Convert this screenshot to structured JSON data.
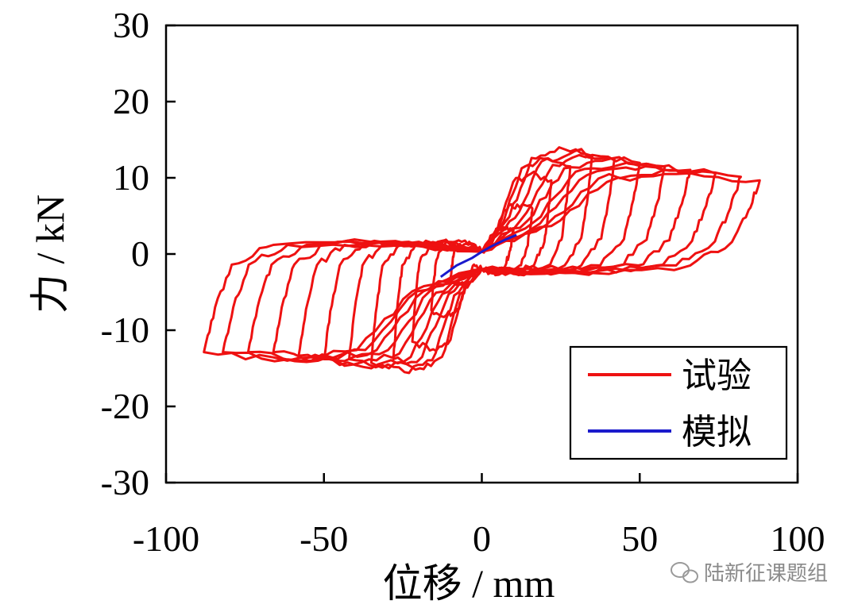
{
  "chart_data": {
    "type": "line",
    "xlabel": "位移 / mm",
    "ylabel": "力 / kN",
    "xlim": [
      -100,
      100
    ],
    "ylim": [
      -30,
      30
    ],
    "xticks": [
      -100,
      -50,
      0,
      50,
      100
    ],
    "yticks": [
      30,
      20,
      10,
      0,
      -10,
      -20,
      -30
    ],
    "xtick_labels": [
      "-100",
      "-50",
      "0",
      "50",
      "100"
    ],
    "ytick_labels": [
      "30",
      "20",
      "10",
      "0",
      "-10",
      "-20",
      "-30"
    ],
    "grid": false,
    "legend_position": "bottom-right",
    "series": [
      {
        "name": "试验",
        "color": "#ee1111",
        "style": "hysteresis",
        "amplitudes": [
          10,
          16,
          22,
          28,
          35,
          42,
          50,
          58,
          66,
          74,
          82,
          88
        ],
        "peak_forces_pos": [
          3.5,
          6.5,
          10.5,
          12.5,
          14.0,
          13.5,
          13.0,
          12.5,
          12.0,
          11.5,
          11.0,
          10.5
        ],
        "peak_forces_neg": [
          -4.0,
          -8.0,
          -12.5,
          -15.0,
          -15.5,
          -15.0,
          -15.0,
          -14.5,
          -14.0,
          -14.0,
          -14.0,
          -14.0
        ],
        "pinch_force": 1.0,
        "post_peak_drop": 4.0
      },
      {
        "name": "模拟",
        "color": "#1a1acc",
        "style": "line",
        "x": [
          -13,
          -8,
          -3,
          0,
          3,
          7,
          11
        ],
        "y": [
          -3.0,
          -1.5,
          -0.5,
          0.3,
          1.0,
          1.8,
          2.5
        ]
      }
    ]
  },
  "watermark": {
    "text": "陆新征课题组",
    "icon": "wechat-icon"
  }
}
